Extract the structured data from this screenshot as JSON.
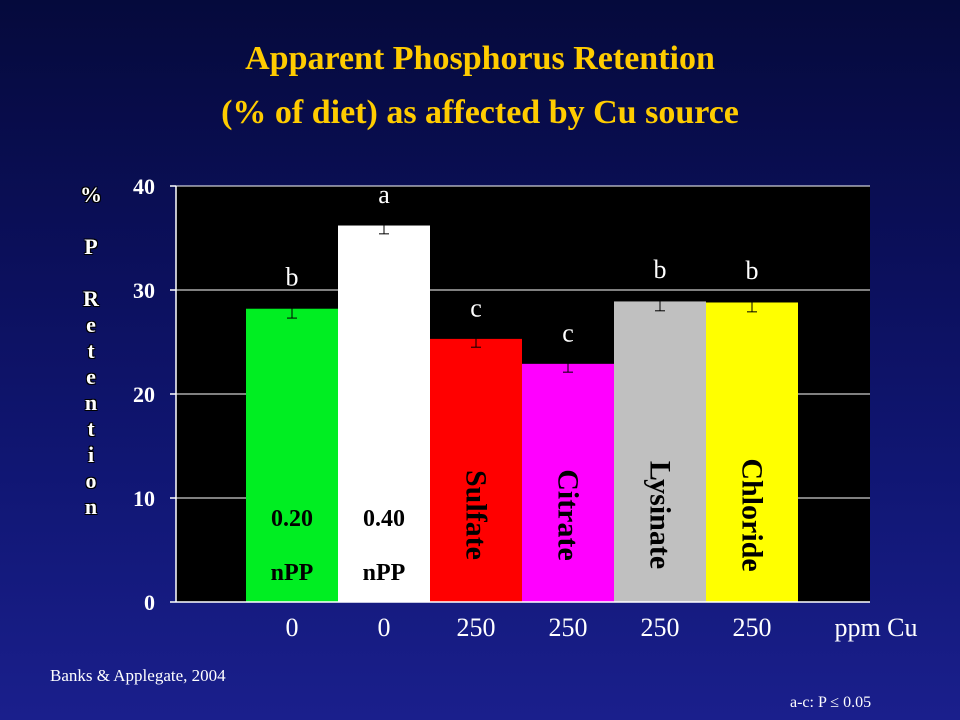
{
  "title_line1": "Apparent Phosphorus Retention",
  "title_line2": "(% of diet) as affected by Cu source",
  "ylabel": "% P Retention",
  "footer_source": "Banks & Applegate, 2004",
  "footer_significance": "a-c: P ≤ 0.05",
  "chart_data": {
    "type": "bar",
    "title": "Apparent Phosphorus Retention (% of diet) as affected by Cu source",
    "ylabel": "% P Retention",
    "xlabel": "ppm Cu",
    "ylim": [
      0,
      40
    ],
    "yticks": [
      0,
      10,
      20,
      30,
      40
    ],
    "grid": true,
    "bars": [
      {
        "category": "0",
        "value": 28.2,
        "error": 0.9,
        "letter": "b",
        "inner_label": [
          "0.20",
          "nPP"
        ],
        "vertical_label": "",
        "color": "#00ee22"
      },
      {
        "category": "0",
        "value": 36.2,
        "error": 0.8,
        "letter": "a",
        "inner_label": [
          "0.40",
          "nPP"
        ],
        "vertical_label": "",
        "color": "#ffffff"
      },
      {
        "category": "250",
        "value": 25.3,
        "error": 0.8,
        "letter": "c",
        "inner_label": [],
        "vertical_label": "Sulfate",
        "color": "#ff0000"
      },
      {
        "category": "250",
        "value": 22.9,
        "error": 0.8,
        "letter": "c",
        "inner_label": [],
        "vertical_label": "Citrate",
        "color": "#ff00ff"
      },
      {
        "category": "250",
        "value": 28.9,
        "error": 0.9,
        "letter": "b",
        "inner_label": [],
        "vertical_label": "Lysinate",
        "color": "#c0c0c0"
      },
      {
        "category": "250",
        "value": 28.8,
        "error": 0.9,
        "letter": "b",
        "inner_label": [],
        "vertical_label": "Chloride",
        "color": "#ffff00"
      }
    ],
    "colors": {
      "plot_background": "#000000",
      "axis": "#ffffff",
      "text": "#ffffff",
      "title": "#ffcc00"
    }
  }
}
